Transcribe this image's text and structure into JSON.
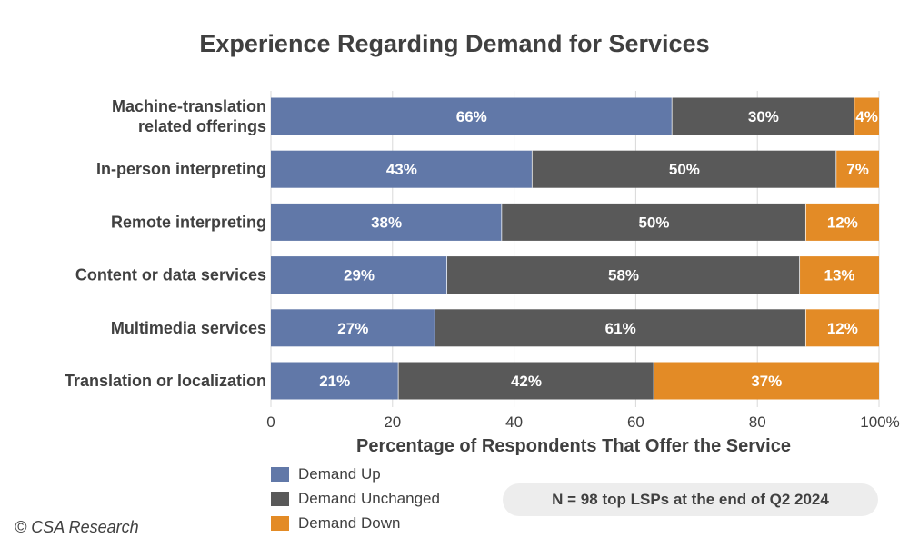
{
  "chart_data": {
    "type": "bar",
    "orientation": "horizontal",
    "stacked": true,
    "title": "Experience Regarding Demand for Services",
    "xlabel": "Percentage of Respondents That Offer the Service",
    "ylabel": "",
    "xlim": [
      0,
      100
    ],
    "xticks": [
      "0",
      "20",
      "40",
      "60",
      "80",
      "100%"
    ],
    "xtick_values": [
      0,
      20,
      40,
      60,
      80,
      100
    ],
    "grid": true,
    "legend_position": "bottom-left",
    "categories": [
      [
        "Machine-translation",
        "related offerings"
      ],
      [
        "In-person interpreting"
      ],
      [
        "Remote interpreting"
      ],
      [
        "Content or data services"
      ],
      [
        "Multimedia services"
      ],
      [
        "Translation or localization"
      ]
    ],
    "series": [
      {
        "name": "Demand Up",
        "color": "#6178a8",
        "values": [
          66,
          43,
          38,
          29,
          27,
          21
        ],
        "labels": [
          "66%",
          "43%",
          "38%",
          "29%",
          "27%",
          "21%"
        ]
      },
      {
        "name": "Demand Unchanged",
        "color": "#595959",
        "values": [
          30,
          50,
          50,
          58,
          61,
          42
        ],
        "labels": [
          "30%",
          "50%",
          "50%",
          "58%",
          "61%",
          "42%"
        ]
      },
      {
        "name": "Demand Down",
        "color": "#e38b26",
        "values": [
          4,
          7,
          12,
          13,
          12,
          37
        ],
        "labels": [
          "4%",
          "7%",
          "12%",
          "13%",
          "12%",
          "37%"
        ]
      }
    ]
  },
  "note": "N = 98 top LSPs at the end of Q2 2024",
  "credit": "© CSA Research"
}
